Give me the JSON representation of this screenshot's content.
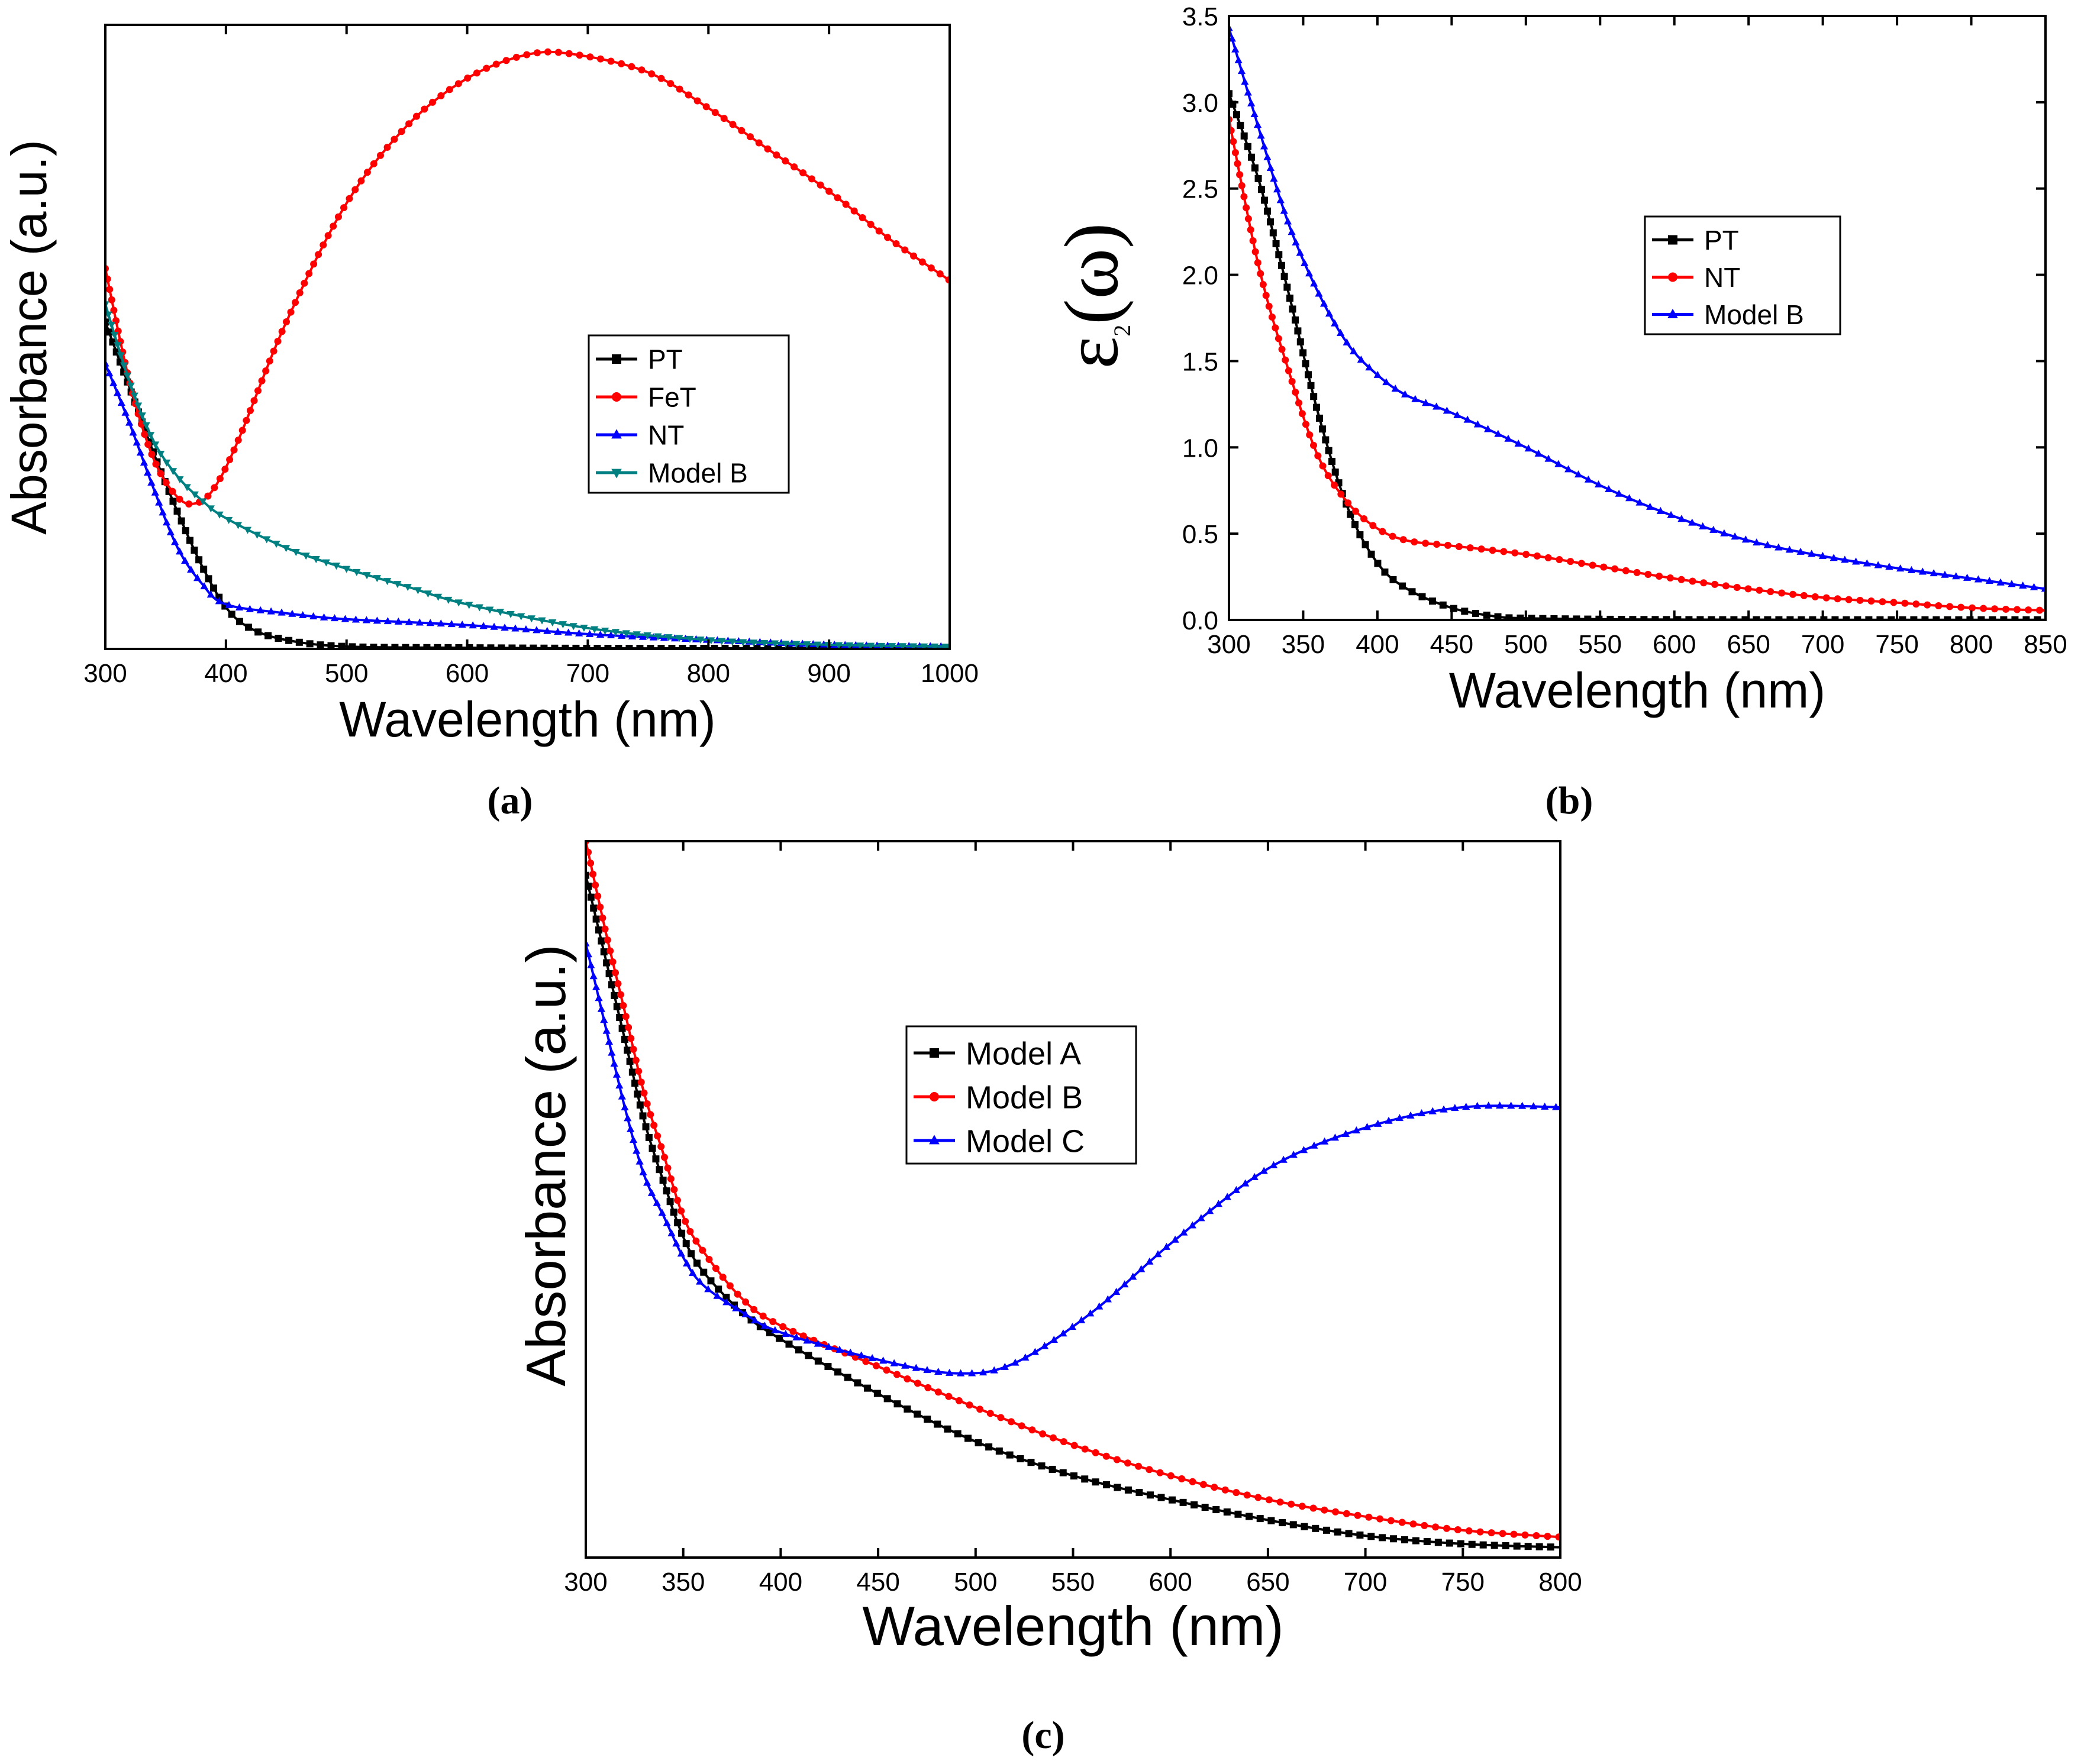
{
  "panel_labels": {
    "a": "(a)",
    "b": "(b)",
    "c": "(c)"
  },
  "colors": {
    "black": "#000000",
    "red": "#ff0000",
    "blue": "#0000ff",
    "teal": "#008080"
  },
  "chart_data": [
    {
      "id": "a",
      "type": "line",
      "title": "",
      "xlabel": "Wavelength (nm)",
      "ylabel": "Absorbance (a.u.)",
      "xlim": [
        300,
        1000
      ],
      "ylim": [
        0,
        1.05
      ],
      "xticks": [
        300,
        400,
        500,
        600,
        700,
        800,
        900,
        1000
      ],
      "show_yticks": false,
      "legend": {
        "position": "center-right"
      },
      "series": [
        {
          "name": "PT",
          "color": "#000000",
          "marker": "square",
          "x": [
            300,
            320,
            340,
            360,
            380,
            400,
            420,
            450,
            500,
            600,
            700,
            800,
            900,
            1000
          ],
          "y": [
            0.55,
            0.44,
            0.33,
            0.23,
            0.14,
            0.07,
            0.035,
            0.015,
            0.004,
            0.002,
            0.001,
            0.001,
            0.001,
            0.001
          ]
        },
        {
          "name": "FeT",
          "color": "#ff0000",
          "marker": "circle",
          "x": [
            300,
            320,
            340,
            360,
            375,
            390,
            410,
            450,
            500,
            550,
            600,
            650,
            690,
            750,
            800,
            850,
            900,
            950,
            1000
          ],
          "y": [
            0.64,
            0.45,
            0.32,
            0.255,
            0.245,
            0.27,
            0.35,
            0.55,
            0.75,
            0.88,
            0.96,
            1.0,
            1.0,
            0.97,
            0.91,
            0.84,
            0.77,
            0.69,
            0.62
          ]
        },
        {
          "name": "NT",
          "color": "#0000ff",
          "marker": "triangle-up",
          "x": [
            300,
            320,
            340,
            360,
            380,
            400,
            450,
            500,
            600,
            700,
            800,
            900,
            1000
          ],
          "y": [
            0.48,
            0.38,
            0.27,
            0.17,
            0.11,
            0.075,
            0.06,
            0.05,
            0.04,
            0.025,
            0.015,
            0.007,
            0.004
          ]
        },
        {
          "name": "Model B",
          "color": "#008080",
          "marker": "triangle-down",
          "x": [
            300,
            320,
            340,
            360,
            380,
            400,
            450,
            500,
            550,
            600,
            700,
            800,
            900,
            1000
          ],
          "y": [
            0.58,
            0.45,
            0.35,
            0.29,
            0.25,
            0.22,
            0.17,
            0.135,
            0.105,
            0.075,
            0.035,
            0.015,
            0.007,
            0.004
          ]
        }
      ]
    },
    {
      "id": "b",
      "type": "line",
      "title": "",
      "xlabel": "Wavelength (nm)",
      "ylabel": "ε₂(ω)",
      "ylabel_main": "ε",
      "ylabel_sub": "2",
      "ylabel_arg": "(ω)",
      "xlim": [
        300,
        850
      ],
      "ylim": [
        0,
        3.5
      ],
      "xticks": [
        300,
        350,
        400,
        450,
        500,
        550,
        600,
        650,
        700,
        750,
        800,
        850
      ],
      "yticks": [
        "0.0",
        "0.5",
        "1.0",
        "1.5",
        "2.0",
        "2.5",
        "3.0",
        "3.5"
      ],
      "legend": {
        "position": "top-right"
      },
      "series": [
        {
          "name": "PT",
          "color": "#000000",
          "marker": "square",
          "x": [
            300,
            320,
            340,
            360,
            380,
            400,
            420,
            450,
            480,
            500,
            550,
            600,
            700,
            850
          ],
          "y": [
            3.05,
            2.55,
            1.9,
            1.2,
            0.65,
            0.33,
            0.18,
            0.07,
            0.02,
            0.01,
            0.004,
            0.002,
            0.001,
            0.001
          ]
        },
        {
          "name": "NT",
          "color": "#ff0000",
          "marker": "circle",
          "x": [
            300,
            320,
            340,
            360,
            380,
            400,
            420,
            450,
            500,
            550,
            600,
            650,
            700,
            750,
            800,
            850
          ],
          "y": [
            2.9,
            2.05,
            1.45,
            0.95,
            0.68,
            0.53,
            0.46,
            0.43,
            0.38,
            0.31,
            0.24,
            0.18,
            0.13,
            0.1,
            0.07,
            0.055
          ]
        },
        {
          "name": "Model B",
          "color": "#0000ff",
          "marker": "triangle-up",
          "x": [
            300,
            320,
            340,
            360,
            380,
            400,
            420,
            450,
            500,
            550,
            600,
            650,
            700,
            750,
            800,
            850
          ],
          "y": [
            3.43,
            2.85,
            2.3,
            1.9,
            1.6,
            1.42,
            1.3,
            1.2,
            1.0,
            0.78,
            0.6,
            0.46,
            0.37,
            0.3,
            0.24,
            0.18
          ]
        }
      ]
    },
    {
      "id": "c",
      "type": "line",
      "title": "",
      "xlabel": "Wavelength (nm)",
      "ylabel": "Absorbance (a.u.)",
      "xlim": [
        300,
        800
      ],
      "ylim": [
        0,
        1.05
      ],
      "xticks": [
        300,
        350,
        400,
        450,
        500,
        550,
        600,
        650,
        700,
        750,
        800
      ],
      "show_yticks": false,
      "legend": {
        "position": "top-center"
      },
      "series": [
        {
          "name": "Model A",
          "color": "#000000",
          "marker": "square",
          "x": [
            300,
            310,
            320,
            330,
            340,
            350,
            360,
            380,
            400,
            450,
            500,
            550,
            600,
            650,
            700,
            750,
            800
          ],
          "y": [
            1.0,
            0.88,
            0.76,
            0.64,
            0.55,
            0.47,
            0.42,
            0.36,
            0.32,
            0.24,
            0.17,
            0.12,
            0.085,
            0.055,
            0.032,
            0.02,
            0.015
          ]
        },
        {
          "name": "Model B",
          "color": "#ff0000",
          "marker": "circle",
          "x": [
            300,
            310,
            320,
            330,
            340,
            350,
            360,
            380,
            400,
            450,
            500,
            550,
            600,
            650,
            700,
            750,
            800
          ],
          "y": [
            1.05,
            0.92,
            0.8,
            0.68,
            0.59,
            0.5,
            0.45,
            0.38,
            0.34,
            0.28,
            0.22,
            0.165,
            0.12,
            0.085,
            0.06,
            0.04,
            0.03
          ]
        },
        {
          "name": "Model C",
          "color": "#0000ff",
          "marker": "triangle-up",
          "x": [
            300,
            310,
            320,
            330,
            340,
            350,
            360,
            380,
            400,
            450,
            490,
            520,
            560,
            600,
            650,
            700,
            750,
            800
          ],
          "y": [
            0.9,
            0.78,
            0.66,
            0.56,
            0.5,
            0.44,
            0.4,
            0.36,
            0.33,
            0.29,
            0.27,
            0.285,
            0.36,
            0.46,
            0.57,
            0.63,
            0.66,
            0.66
          ]
        }
      ]
    }
  ]
}
